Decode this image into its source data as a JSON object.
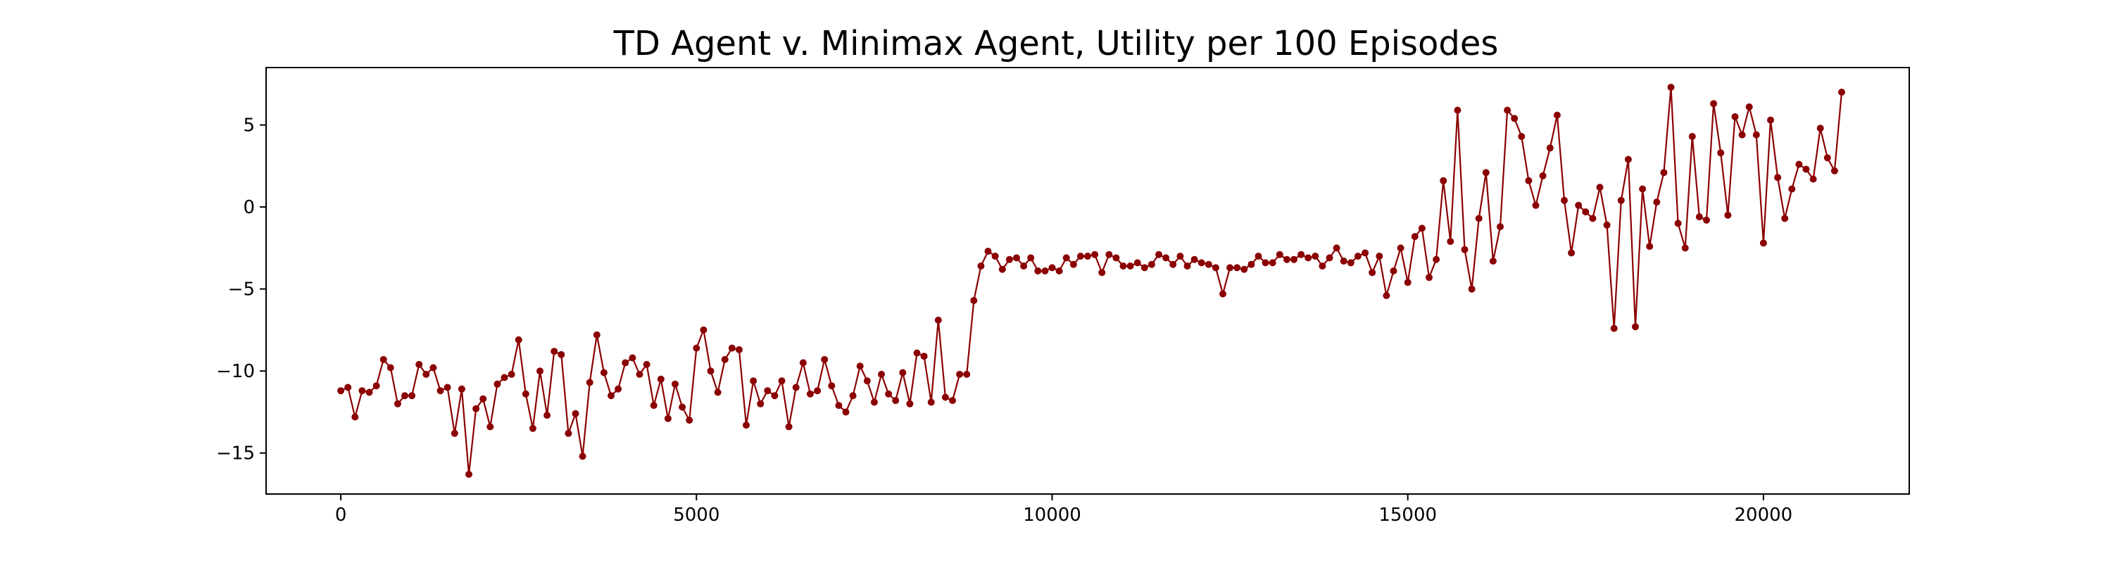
{
  "chart_data": {
    "type": "line",
    "title": "TD Agent v. Minimax Agent, Utility per 100 Episodes",
    "xlabel": "",
    "ylabel": "",
    "xlim": [
      -1050,
      22050
    ],
    "ylim": [
      -17.5,
      8.5
    ],
    "xticks": [
      0,
      5000,
      10000,
      15000,
      20000
    ],
    "yticks": [
      -15,
      -10,
      -5,
      0,
      5
    ],
    "grid": false,
    "line_color": "#8b0000",
    "marker": "circle",
    "series": [
      {
        "x_start": 0,
        "x_step": 100,
        "values": [
          -11.2,
          -11.0,
          -12.8,
          -11.2,
          -11.3,
          -10.9,
          -9.3,
          -9.8,
          -12.0,
          -11.5,
          -11.5,
          -9.6,
          -10.2,
          -9.8,
          -11.2,
          -11.0,
          -13.8,
          -11.1,
          -16.3,
          -12.3,
          -11.7,
          -13.4,
          -10.8,
          -10.4,
          -10.2,
          -8.1,
          -11.4,
          -13.5,
          -10.0,
          -12.7,
          -8.8,
          -9.0,
          -13.8,
          -12.6,
          -15.2,
          -10.7,
          -7.8,
          -10.1,
          -11.5,
          -11.1,
          -9.5,
          -9.2,
          -10.2,
          -9.6,
          -12.1,
          -10.5,
          -12.9,
          -10.8,
          -12.2,
          -13.0,
          -8.6,
          -7.5,
          -10.0,
          -11.3,
          -9.3,
          -8.6,
          -8.7,
          -13.3,
          -10.6,
          -12.0,
          -11.2,
          -11.5,
          -10.6,
          -13.4,
          -11.0,
          -9.5,
          -11.4,
          -11.2,
          -9.3,
          -10.9,
          -12.1,
          -12.5,
          -11.5,
          -9.7,
          -10.6,
          -11.9,
          -10.2,
          -11.4,
          -11.8,
          -10.1,
          -12.0,
          -8.9,
          -9.1,
          -11.9,
          -6.9,
          -11.6,
          -11.8,
          -10.2,
          -10.2,
          -5.7,
          -3.6,
          -2.7,
          -3.0,
          -3.8,
          -3.2,
          -3.1,
          -3.6,
          -3.1,
          -3.9,
          -3.9,
          -3.7,
          -3.9,
          -3.1,
          -3.5,
          -3.0,
          -3.0,
          -2.9,
          -4.0,
          -2.9,
          -3.1,
          -3.6,
          -3.6,
          -3.4,
          -3.7,
          -3.5,
          -2.9,
          -3.1,
          -3.5,
          -3.0,
          -3.6,
          -3.2,
          -3.4,
          -3.5,
          -3.7,
          -5.3,
          -3.7,
          -3.7,
          -3.8,
          -3.5,
          -3.0,
          -3.4,
          -3.4,
          -2.9,
          -3.2,
          -3.2,
          -2.9,
          -3.1,
          -3.0,
          -3.6,
          -3.1,
          -2.5,
          -3.3,
          -3.4,
          -3.0,
          -2.8,
          -4.0,
          -3.0,
          -5.4,
          -3.9,
          -2.5,
          -4.6,
          -1.8,
          -1.3,
          -4.3,
          -3.2,
          1.6,
          -2.1,
          5.9,
          -2.6,
          -5.0,
          -0.7,
          2.1,
          -3.3,
          -1.2,
          5.9,
          5.4,
          4.3,
          1.6,
          0.1,
          1.9,
          3.6,
          5.6,
          0.4,
          -2.8,
          0.1,
          -0.3,
          -0.7,
          1.2,
          -1.1,
          -7.4,
          0.4,
          2.9,
          -7.3,
          1.1,
          -2.4,
          0.3,
          2.1,
          7.3,
          -1.0,
          -2.5,
          4.3,
          -0.6,
          -0.8,
          6.3,
          3.3,
          -0.5,
          5.5,
          4.4,
          6.1,
          4.4,
          -2.2,
          5.3,
          1.8,
          -0.7,
          1.1,
          2.6,
          2.3,
          1.7,
          4.8,
          3.0,
          2.2,
          7.0
        ]
      }
    ]
  }
}
